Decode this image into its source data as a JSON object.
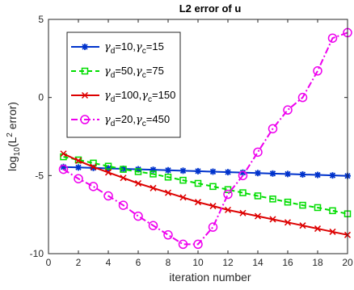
{
  "chart_data": {
    "type": "line",
    "title": "L2 error of u",
    "xlabel": "iteration number",
    "ylabel_prefix": "log",
    "ylabel_sub": "10",
    "ylabel_open": "(L",
    "ylabel_sup": "2",
    "ylabel_rest": " error)",
    "xlim": [
      0,
      20
    ],
    "ylim": [
      -10,
      5
    ],
    "xticks": [
      0,
      2,
      4,
      6,
      8,
      10,
      12,
      14,
      16,
      18,
      20
    ],
    "yticks": [
      -10,
      -5,
      0,
      5
    ],
    "grid": false,
    "legend_position": "top-left",
    "x": [
      1,
      2,
      3,
      4,
      5,
      6,
      7,
      8,
      9,
      10,
      11,
      12,
      13,
      14,
      15,
      16,
      17,
      18,
      19,
      20
    ],
    "series": [
      {
        "gamma_d_symbol": "γ",
        "gamma_d_sub": "d",
        "gamma_d_value": "=10,",
        "gamma_c_symbol": "γ",
        "gamma_c_sub": "c",
        "gamma_c_value": "=15",
        "color": "#0033cc",
        "marker": "asterisk",
        "linestyle": "solid",
        "values": [
          -4.45,
          -4.48,
          -4.51,
          -4.54,
          -4.57,
          -4.6,
          -4.63,
          -4.66,
          -4.69,
          -4.72,
          -4.75,
          -4.78,
          -4.81,
          -4.84,
          -4.87,
          -4.9,
          -4.93,
          -4.96,
          -4.99,
          -5.02
        ]
      },
      {
        "gamma_d_symbol": "γ",
        "gamma_d_sub": "d",
        "gamma_d_value": "=50,",
        "gamma_c_symbol": "γ",
        "gamma_c_sub": "c",
        "gamma_c_value": "=75",
        "color": "#00dd00",
        "marker": "square",
        "linestyle": "dashed",
        "values": [
          -3.8,
          -4.0,
          -4.2,
          -4.4,
          -4.6,
          -4.75,
          -4.9,
          -5.1,
          -5.3,
          -5.5,
          -5.7,
          -5.9,
          -6.1,
          -6.3,
          -6.5,
          -6.7,
          -6.9,
          -7.05,
          -7.25,
          -7.45
        ]
      },
      {
        "gamma_d_symbol": "γ",
        "gamma_d_sub": "d",
        "gamma_d_value": "=100,",
        "gamma_c_symbol": "γ",
        "gamma_c_sub": "c",
        "gamma_c_value": "=150",
        "color": "#dd0000",
        "marker": "x",
        "linestyle": "solid",
        "values": [
          -3.6,
          -4.05,
          -4.45,
          -4.8,
          -5.15,
          -5.5,
          -5.8,
          -6.1,
          -6.4,
          -6.7,
          -6.95,
          -7.2,
          -7.4,
          -7.6,
          -7.8,
          -8.0,
          -8.2,
          -8.4,
          -8.6,
          -8.8
        ]
      },
      {
        "gamma_d_symbol": "γ",
        "gamma_d_sub": "d",
        "gamma_d_value": "=20,",
        "gamma_c_symbol": "γ",
        "gamma_c_sub": "c",
        "gamma_c_value": "=450",
        "color": "#ee00ee",
        "marker": "circle",
        "linestyle": "dashdot",
        "values": [
          -4.6,
          -5.2,
          -5.7,
          -6.3,
          -6.9,
          -7.6,
          -8.2,
          -8.8,
          -9.4,
          -9.4,
          -8.3,
          -6.2,
          -5.0,
          -3.5,
          -2.0,
          -0.8,
          0.0,
          1.7,
          3.8,
          4.15
        ]
      }
    ]
  }
}
